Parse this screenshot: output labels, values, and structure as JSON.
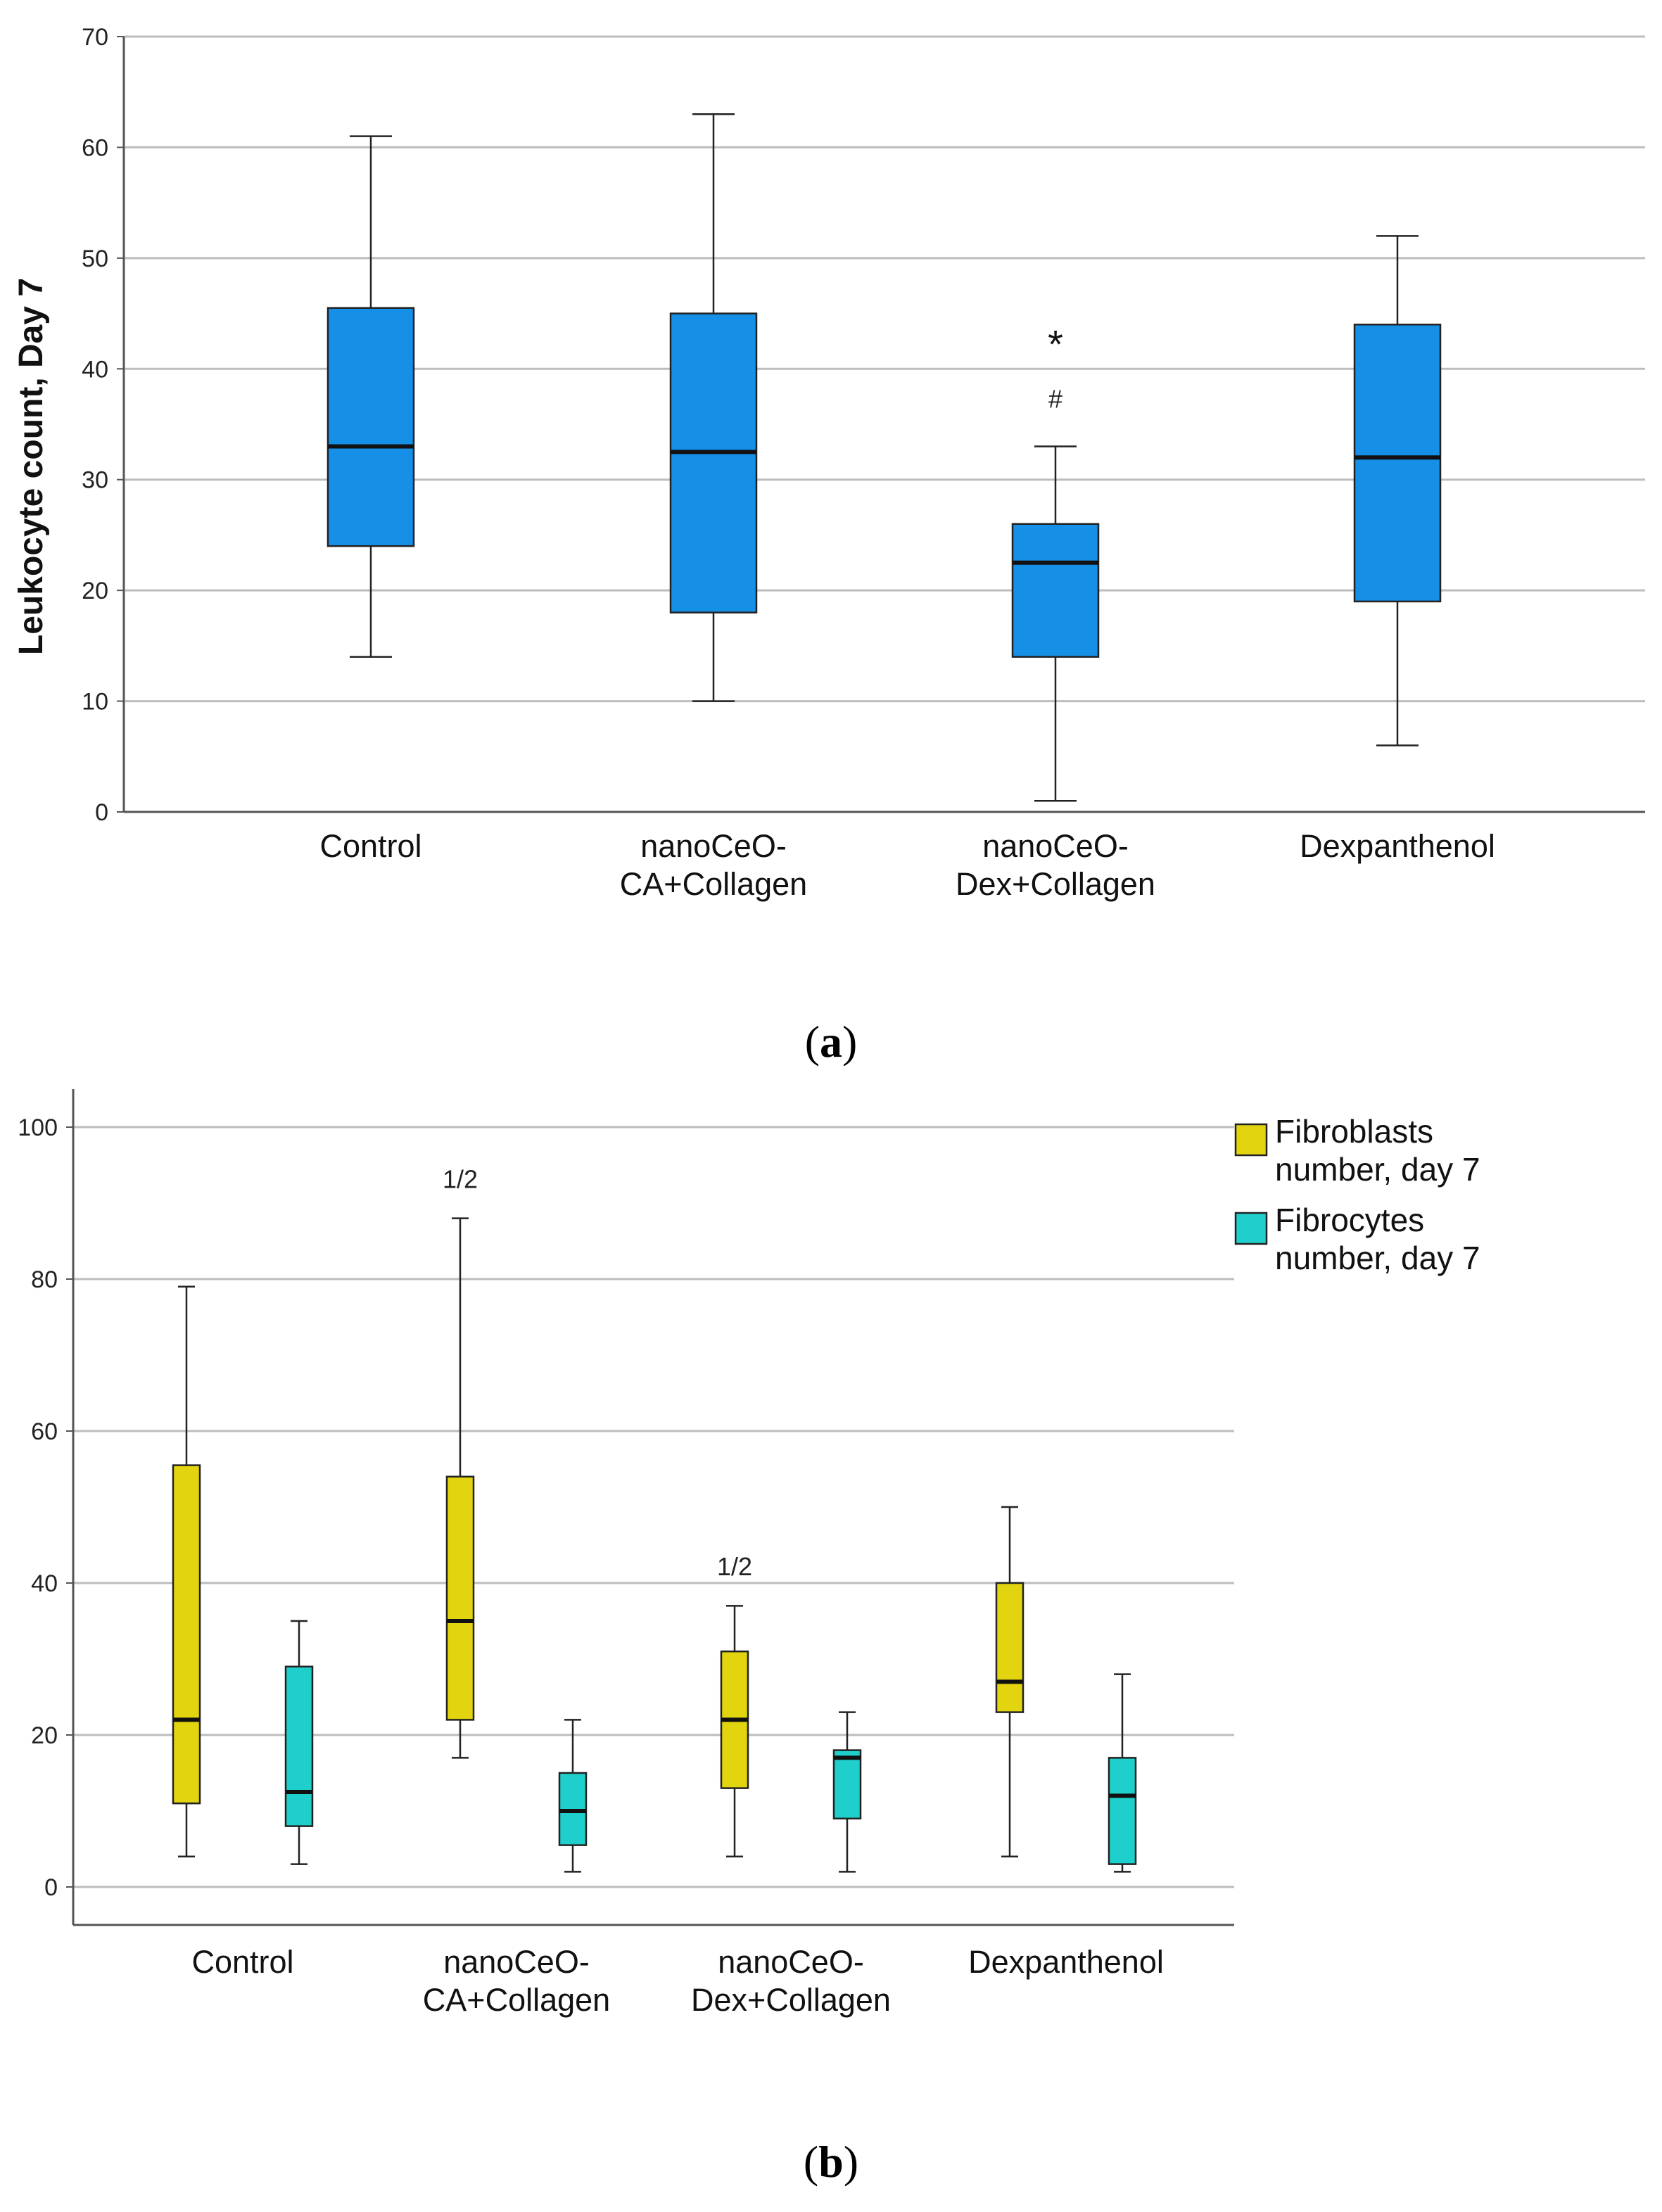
{
  "chart_data": [
    {
      "type": "box",
      "panel_label": "(a)",
      "ylabel": "Leukocyte count, Day 7",
      "xlabel": "",
      "ylim": [
        0,
        70
      ],
      "yticks": [
        "0",
        "10",
        "20",
        "30",
        "40",
        "50",
        "60",
        "70"
      ],
      "grid": true,
      "categories": [
        {
          "line1": "Control",
          "line2": ""
        },
        {
          "line1": "nanoCeO-",
          "line2": "CA+Collagen"
        },
        {
          "line1": "nanoCeO-",
          "line2": "Dex+Collagen"
        },
        {
          "line1": "Dexpanthenol",
          "line2": ""
        }
      ],
      "series": [
        {
          "name": "Leukocyte count, Day 7",
          "color": "#1590e6",
          "boxes": [
            {
              "min": 14,
              "q1": 24,
              "median": 33,
              "q3": 45.5,
              "max": 61
            },
            {
              "min": 10,
              "q1": 18,
              "median": 32.5,
              "q3": 45,
              "max": 63
            },
            {
              "min": 1,
              "q1": 14,
              "median": 22.5,
              "q3": 26,
              "max": 33
            },
            {
              "min": 6,
              "q1": 19,
              "median": 32,
              "q3": 44,
              "max": 52
            }
          ]
        }
      ],
      "annotations": [
        {
          "text": "*",
          "category": 2,
          "y": 41,
          "style": "star"
        },
        {
          "text": "#",
          "category": 2,
          "y": 36.5,
          "style": "hash"
        }
      ]
    },
    {
      "type": "box",
      "panel_label": "(b)",
      "ylabel": "",
      "xlabel": "",
      "ylim": [
        -5,
        105
      ],
      "yticks": [
        "0",
        "20",
        "40",
        "60",
        "80",
        "100"
      ],
      "grid": true,
      "legend_position": "top-right outside",
      "categories": [
        {
          "line1": "Control",
          "line2": ""
        },
        {
          "line1": "nanoCeO-",
          "line2": "CA+Collagen"
        },
        {
          "line1": "nanoCeO-",
          "line2": "Dex+Collagen"
        },
        {
          "line1": "Dexpanthenol",
          "line2": ""
        }
      ],
      "series": [
        {
          "name": "Fibroblasts number, day 7",
          "legend_line1": "Fibroblasts",
          "legend_line2": "number, day 7",
          "color": "#e2d40f",
          "boxes": [
            {
              "min": 4,
              "q1": 11,
              "median": 22,
              "q3": 55.5,
              "max": 79
            },
            {
              "min": 17,
              "q1": 22,
              "median": 35,
              "q3": 54,
              "max": 88
            },
            {
              "min": 4,
              "q1": 13,
              "median": 22,
              "q3": 31,
              "max": 37
            },
            {
              "min": 4,
              "q1": 23,
              "median": 27,
              "q3": 40,
              "max": 50
            }
          ]
        },
        {
          "name": "Fibrocytes number, day 7",
          "legend_line1": "Fibrocytes",
          "legend_line2": "number, day 7",
          "color": "#1fcfcb",
          "boxes": [
            {
              "min": 3,
              "q1": 8,
              "median": 12.5,
              "q3": 29,
              "max": 35
            },
            {
              "min": 2,
              "q1": 5.5,
              "median": 10,
              "q3": 15,
              "max": 22
            },
            {
              "min": 2,
              "q1": 9,
              "median": 17,
              "q3": 18,
              "max": 23
            },
            {
              "min": 2,
              "q1": 3,
              "median": 12,
              "q3": 17,
              "max": 28
            }
          ]
        }
      ],
      "annotations": [
        {
          "text": "1/2",
          "category": 1,
          "series": 0,
          "y": 92,
          "style": "note"
        },
        {
          "text": "1/2",
          "category": 2,
          "series": 0,
          "y": 41,
          "style": "note"
        }
      ]
    }
  ]
}
